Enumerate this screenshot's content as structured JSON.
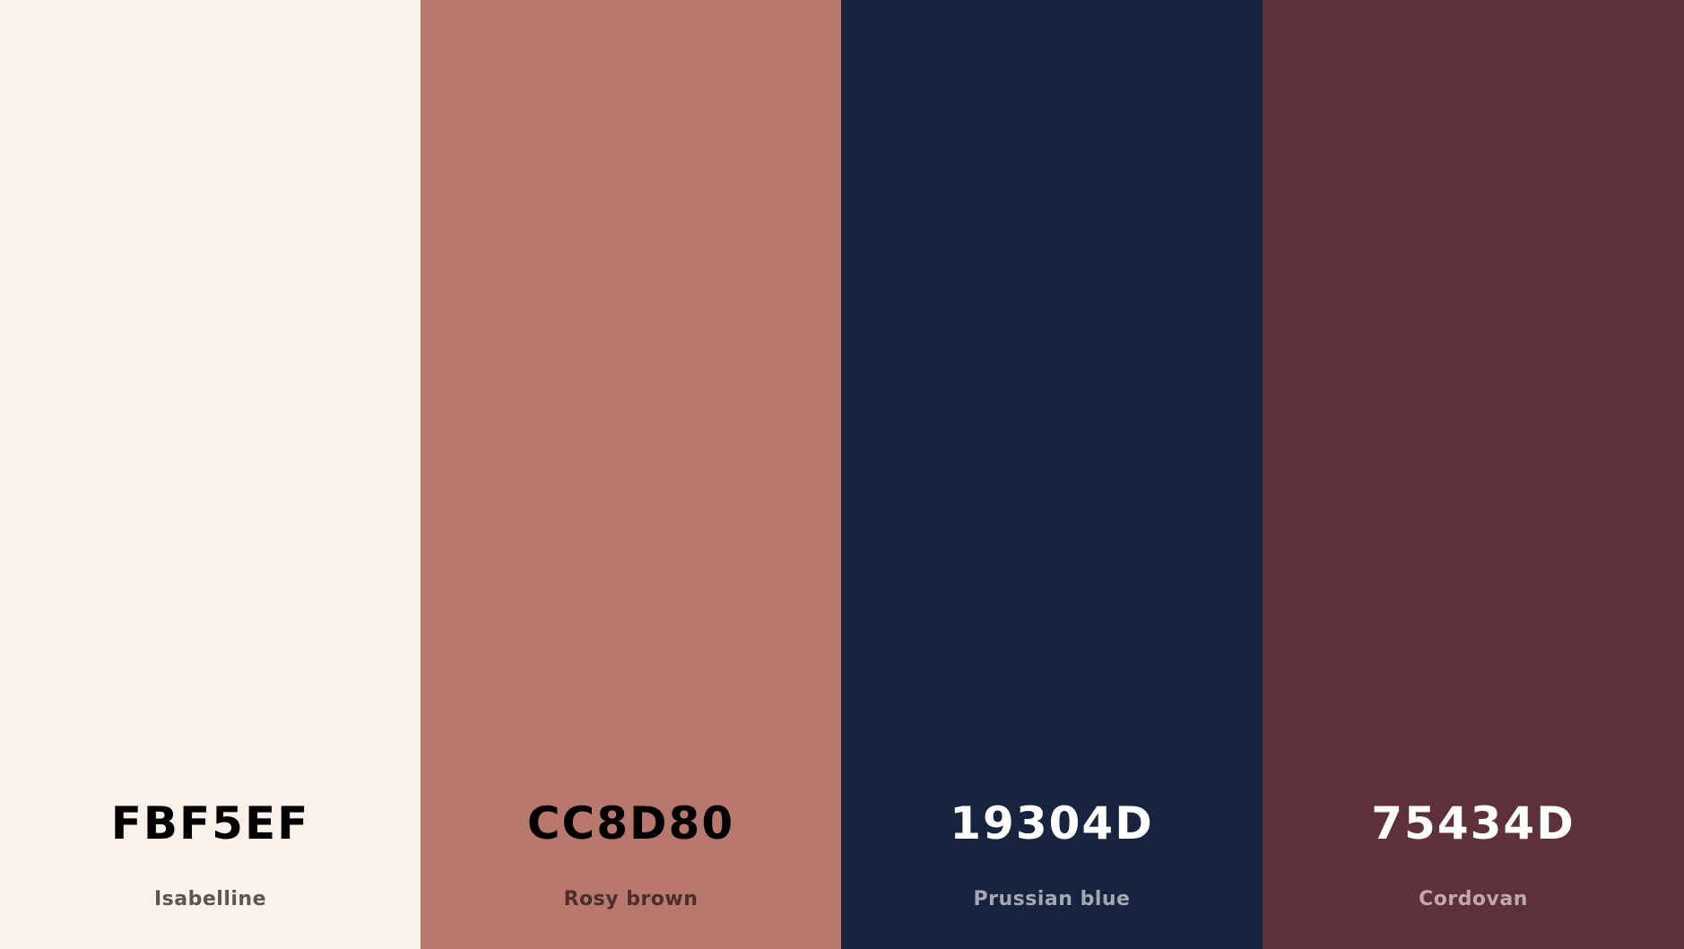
{
  "palette": {
    "swatches": [
      {
        "hex": "FBF5EF",
        "name": "Isabelline",
        "color": "#F9F1EA",
        "hex_text_color": "#000000",
        "name_text_color": "#5A5654"
      },
      {
        "hex": "CC8D80",
        "name": "Rosy brown",
        "color": "#B8786D",
        "hex_text_color": "#000000",
        "name_text_color": "#4A2F2B"
      },
      {
        "hex": "19304D",
        "name": "Prussian blue",
        "color": "#16243F",
        "hex_text_color": "#FFFFFF",
        "name_text_color": "#A3A8B3"
      },
      {
        "hex": "75434D",
        "name": "Cordovan",
        "color": "#5D303A",
        "hex_text_color": "#FFFFFF",
        "name_text_color": "#BEAAAE"
      }
    ]
  }
}
